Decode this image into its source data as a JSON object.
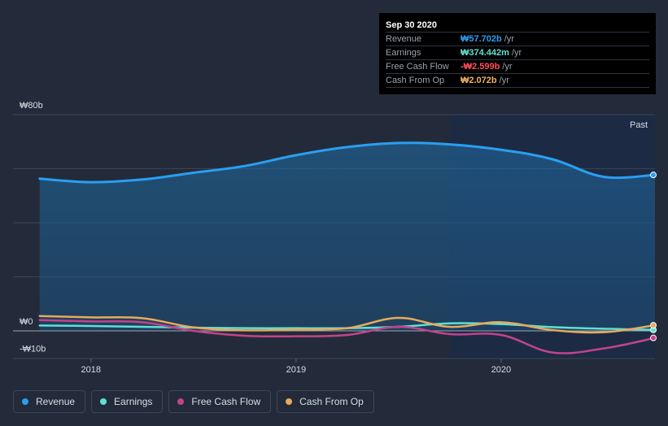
{
  "tooltip": {
    "date": "Sep 30 2020",
    "rows": [
      {
        "label": "Revenue",
        "value": "₩57.702b",
        "unit": "/yr",
        "color": "#2a9ff1"
      },
      {
        "label": "Earnings",
        "value": "₩374.442m",
        "unit": "/yr",
        "color": "#5fe0d2"
      },
      {
        "label": "Free Cash Flow",
        "value": "-₩2.599b",
        "unit": "/yr",
        "color": "#ff4c5c"
      },
      {
        "label": "Cash From Op",
        "value": "₩2.072b",
        "unit": "/yr",
        "color": "#f2b25e"
      }
    ]
  },
  "past_label": "Past",
  "legend": [
    {
      "label": "Revenue",
      "color": "#2a9ff1"
    },
    {
      "label": "Earnings",
      "color": "#5fe0d2"
    },
    {
      "label": "Free Cash Flow",
      "color": "#c2448b"
    },
    {
      "label": "Cash From Op",
      "color": "#e8a95c"
    }
  ],
  "chart_data": {
    "type": "line",
    "title": "",
    "xlabel": "",
    "ylabel": "",
    "y_tick_labels": [
      "₩80b",
      "₩0",
      "-₩10b"
    ],
    "x_tick_labels": [
      "2018",
      "2019",
      "2020"
    ],
    "ylim": [
      -10,
      80
    ],
    "xlim": [
      2017.62,
      2020.75
    ],
    "past_start": 2019.75,
    "series": [
      {
        "name": "Revenue",
        "color": "#2a9ff1",
        "x": [
          2017.75,
          2018.0,
          2018.25,
          2018.5,
          2018.75,
          2019.0,
          2019.25,
          2019.5,
          2019.75,
          2020.0,
          2020.25,
          2020.5,
          2020.75
        ],
        "values": [
          56.3,
          55.0,
          56.0,
          58.5,
          61.0,
          65.0,
          68.0,
          69.5,
          69.0,
          67.0,
          63.5,
          57.0,
          57.7
        ]
      },
      {
        "name": "Earnings",
        "color": "#5fe0d2",
        "x": [
          2017.75,
          2018.0,
          2018.25,
          2018.5,
          2018.75,
          2019.0,
          2019.25,
          2019.5,
          2019.75,
          2020.0,
          2020.25,
          2020.5,
          2020.75
        ],
        "values": [
          2.0,
          1.8,
          1.5,
          1.2,
          1.0,
          1.0,
          1.0,
          1.5,
          2.8,
          2.5,
          1.4,
          0.8,
          0.37
        ]
      },
      {
        "name": "Free Cash Flow",
        "color": "#c2448b",
        "x": [
          2017.75,
          2018.0,
          2018.25,
          2018.5,
          2018.75,
          2019.0,
          2019.25,
          2019.5,
          2019.75,
          2020.0,
          2020.25,
          2020.5,
          2020.75
        ],
        "values": [
          4.0,
          3.5,
          3.2,
          0.0,
          -1.8,
          -2.0,
          -1.5,
          1.5,
          -1.2,
          -1.5,
          -8.0,
          -6.5,
          -2.6
        ]
      },
      {
        "name": "Cash From Op",
        "color": "#e8a95c",
        "x": [
          2017.75,
          2018.0,
          2018.25,
          2018.5,
          2018.75,
          2019.0,
          2019.25,
          2019.5,
          2019.75,
          2020.0,
          2020.25,
          2020.5,
          2020.75
        ],
        "values": [
          5.5,
          5.0,
          4.7,
          1.3,
          0.2,
          0.5,
          1.0,
          4.8,
          1.5,
          3.2,
          0.3,
          -0.5,
          2.07
        ]
      }
    ]
  }
}
